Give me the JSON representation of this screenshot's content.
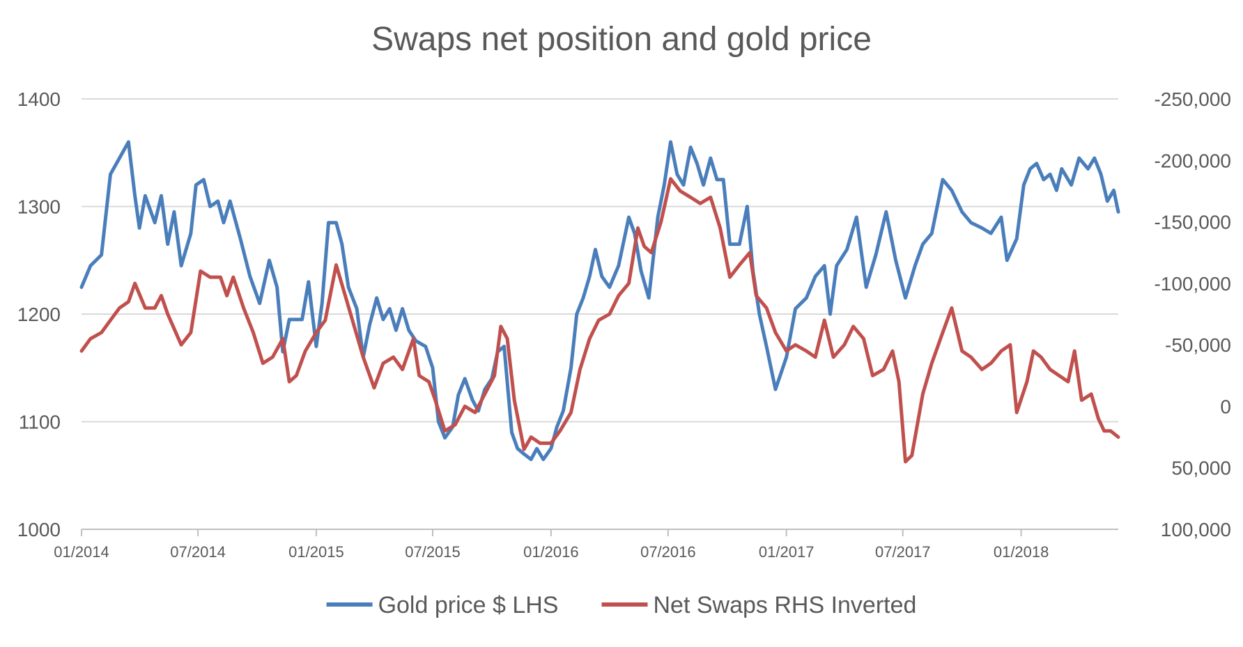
{
  "chart_data": {
    "type": "line",
    "title": "Swaps net position and gold price",
    "x_start": "01/2014",
    "x_end": "06/2018",
    "x_ticks": [
      "01/2014",
      "07/2014",
      "01/2015",
      "07/2015",
      "01/2016",
      "07/2016",
      "01/2017",
      "07/2017",
      "01/2018"
    ],
    "y_left": {
      "min": 1000,
      "max": 1400,
      "ticks": [
        1000,
        1100,
        1200,
        1300,
        1400
      ],
      "tick_labels": [
        "1000",
        "1100",
        "1200",
        "1300",
        "1400"
      ]
    },
    "y_right": {
      "inverted": true,
      "min": -250000,
      "max": 100000,
      "ticks": [
        -250000,
        -200000,
        -150000,
        -100000,
        -50000,
        0,
        50000,
        100000
      ],
      "tick_labels": [
        "-250,000",
        "-200,000",
        "-150,000",
        "-100,000",
        "-50,000",
        "0",
        "50,000",
        "100,000"
      ]
    },
    "grid": true,
    "legend_position": "bottom",
    "series": [
      {
        "name": "Gold price $ LHS",
        "axis": "left",
        "color": "#4a7ebb",
        "points": [
          [
            "2014-01-01",
            1225
          ],
          [
            "2014-01-15",
            1245
          ],
          [
            "2014-02-01",
            1255
          ],
          [
            "2014-02-15",
            1330
          ],
          [
            "2014-03-01",
            1345
          ],
          [
            "2014-03-15",
            1360
          ],
          [
            "2014-03-25",
            1310
          ],
          [
            "2014-04-01",
            1280
          ],
          [
            "2014-04-10",
            1310
          ],
          [
            "2014-04-25",
            1285
          ],
          [
            "2014-05-05",
            1310
          ],
          [
            "2014-05-15",
            1265
          ],
          [
            "2014-05-25",
            1295
          ],
          [
            "2014-06-05",
            1245
          ],
          [
            "2014-06-20",
            1275
          ],
          [
            "2014-06-28",
            1320
          ],
          [
            "2014-07-10",
            1325
          ],
          [
            "2014-07-20",
            1300
          ],
          [
            "2014-08-01",
            1305
          ],
          [
            "2014-08-10",
            1285
          ],
          [
            "2014-08-20",
            1305
          ],
          [
            "2014-09-05",
            1270
          ],
          [
            "2014-09-20",
            1235
          ],
          [
            "2014-10-05",
            1210
          ],
          [
            "2014-10-20",
            1250
          ],
          [
            "2014-11-01",
            1225
          ],
          [
            "2014-11-10",
            1165
          ],
          [
            "2014-11-20",
            1195
          ],
          [
            "2014-12-10",
            1195
          ],
          [
            "2014-12-20",
            1230
          ],
          [
            "2015-01-01",
            1170
          ],
          [
            "2015-01-10",
            1210
          ],
          [
            "2015-01-20",
            1285
          ],
          [
            "2015-02-01",
            1285
          ],
          [
            "2015-02-10",
            1265
          ],
          [
            "2015-02-20",
            1225
          ],
          [
            "2015-03-05",
            1205
          ],
          [
            "2015-03-15",
            1160
          ],
          [
            "2015-03-25",
            1190
          ],
          [
            "2015-04-05",
            1215
          ],
          [
            "2015-04-15",
            1195
          ],
          [
            "2015-04-25",
            1205
          ],
          [
            "2015-05-05",
            1185
          ],
          [
            "2015-05-15",
            1205
          ],
          [
            "2015-05-25",
            1185
          ],
          [
            "2015-06-05",
            1175
          ],
          [
            "2015-06-20",
            1170
          ],
          [
            "2015-07-01",
            1150
          ],
          [
            "2015-07-10",
            1100
          ],
          [
            "2015-07-20",
            1085
          ],
          [
            "2015-08-01",
            1095
          ],
          [
            "2015-08-10",
            1125
          ],
          [
            "2015-08-20",
            1140
          ],
          [
            "2015-09-01",
            1120
          ],
          [
            "2015-09-10",
            1110
          ],
          [
            "2015-09-20",
            1130
          ],
          [
            "2015-10-01",
            1140
          ],
          [
            "2015-10-10",
            1165
          ],
          [
            "2015-10-20",
            1170
          ],
          [
            "2015-11-01",
            1090
          ],
          [
            "2015-11-10",
            1075
          ],
          [
            "2015-11-20",
            1070
          ],
          [
            "2015-12-01",
            1065
          ],
          [
            "2015-12-10",
            1075
          ],
          [
            "2015-12-20",
            1065
          ],
          [
            "2016-01-01",
            1075
          ],
          [
            "2016-01-10",
            1095
          ],
          [
            "2016-01-20",
            1110
          ],
          [
            "2016-02-01",
            1150
          ],
          [
            "2016-02-10",
            1200
          ],
          [
            "2016-02-20",
            1215
          ],
          [
            "2016-03-01",
            1235
          ],
          [
            "2016-03-10",
            1260
          ],
          [
            "2016-03-20",
            1235
          ],
          [
            "2016-04-01",
            1225
          ],
          [
            "2016-04-15",
            1245
          ],
          [
            "2016-05-01",
            1290
          ],
          [
            "2016-05-10",
            1275
          ],
          [
            "2016-05-20",
            1240
          ],
          [
            "2016-06-01",
            1215
          ],
          [
            "2016-06-15",
            1290
          ],
          [
            "2016-06-25",
            1320
          ],
          [
            "2016-07-05",
            1360
          ],
          [
            "2016-07-15",
            1330
          ],
          [
            "2016-07-25",
            1320
          ],
          [
            "2016-08-05",
            1355
          ],
          [
            "2016-08-15",
            1340
          ],
          [
            "2016-08-25",
            1320
          ],
          [
            "2016-09-05",
            1345
          ],
          [
            "2016-09-15",
            1325
          ],
          [
            "2016-09-25",
            1325
          ],
          [
            "2016-10-05",
            1265
          ],
          [
            "2016-10-20",
            1265
          ],
          [
            "2016-11-01",
            1300
          ],
          [
            "2016-11-10",
            1240
          ],
          [
            "2016-11-20",
            1200
          ],
          [
            "2016-12-01",
            1170
          ],
          [
            "2016-12-15",
            1130
          ],
          [
            "2017-01-01",
            1160
          ],
          [
            "2017-01-15",
            1205
          ],
          [
            "2017-02-01",
            1215
          ],
          [
            "2017-02-15",
            1235
          ],
          [
            "2017-03-01",
            1245
          ],
          [
            "2017-03-10",
            1200
          ],
          [
            "2017-03-20",
            1245
          ],
          [
            "2017-04-05",
            1260
          ],
          [
            "2017-04-20",
            1290
          ],
          [
            "2017-05-05",
            1225
          ],
          [
            "2017-05-20",
            1255
          ],
          [
            "2017-06-05",
            1295
          ],
          [
            "2017-06-20",
            1250
          ],
          [
            "2017-07-05",
            1215
          ],
          [
            "2017-07-20",
            1245
          ],
          [
            "2017-08-01",
            1265
          ],
          [
            "2017-08-15",
            1275
          ],
          [
            "2017-09-01",
            1325
          ],
          [
            "2017-09-15",
            1315
          ],
          [
            "2017-10-01",
            1295
          ],
          [
            "2017-10-15",
            1285
          ],
          [
            "2017-11-01",
            1280
          ],
          [
            "2017-11-15",
            1275
          ],
          [
            "2017-12-01",
            1290
          ],
          [
            "2017-12-10",
            1250
          ],
          [
            "2017-12-25",
            1270
          ],
          [
            "2018-01-05",
            1320
          ],
          [
            "2018-01-15",
            1335
          ],
          [
            "2018-01-25",
            1340
          ],
          [
            "2018-02-05",
            1325
          ],
          [
            "2018-02-15",
            1330
          ],
          [
            "2018-02-25",
            1315
          ],
          [
            "2018-03-05",
            1335
          ],
          [
            "2018-03-20",
            1320
          ],
          [
            "2018-04-01",
            1345
          ],
          [
            "2018-04-15",
            1335
          ],
          [
            "2018-04-25",
            1345
          ],
          [
            "2018-05-05",
            1330
          ],
          [
            "2018-05-15",
            1305
          ],
          [
            "2018-05-25",
            1315
          ],
          [
            "2018-06-01",
            1295
          ]
        ]
      },
      {
        "name": "Net Swaps RHS Inverted",
        "axis": "right",
        "color": "#c0504d",
        "points": [
          [
            "2014-01-01",
            -45000
          ],
          [
            "2014-01-15",
            -55000
          ],
          [
            "2014-02-01",
            -60000
          ],
          [
            "2014-02-15",
            -70000
          ],
          [
            "2014-03-01",
            -80000
          ],
          [
            "2014-03-15",
            -85000
          ],
          [
            "2014-03-25",
            -100000
          ],
          [
            "2014-04-10",
            -80000
          ],
          [
            "2014-04-25",
            -80000
          ],
          [
            "2014-05-05",
            -90000
          ],
          [
            "2014-05-15",
            -75000
          ],
          [
            "2014-06-05",
            -50000
          ],
          [
            "2014-06-20",
            -60000
          ],
          [
            "2014-07-05",
            -110000
          ],
          [
            "2014-07-20",
            -105000
          ],
          [
            "2014-08-05",
            -105000
          ],
          [
            "2014-08-15",
            -90000
          ],
          [
            "2014-08-25",
            -105000
          ],
          [
            "2014-09-10",
            -80000
          ],
          [
            "2014-09-25",
            -60000
          ],
          [
            "2014-10-10",
            -35000
          ],
          [
            "2014-10-25",
            -40000
          ],
          [
            "2014-11-10",
            -55000
          ],
          [
            "2014-11-20",
            -20000
          ],
          [
            "2014-12-01",
            -25000
          ],
          [
            "2014-12-15",
            -45000
          ],
          [
            "2015-01-01",
            -60000
          ],
          [
            "2015-01-15",
            -70000
          ],
          [
            "2015-02-01",
            -115000
          ],
          [
            "2015-02-15",
            -90000
          ],
          [
            "2015-03-01",
            -65000
          ],
          [
            "2015-03-15",
            -40000
          ],
          [
            "2015-04-01",
            -15000
          ],
          [
            "2015-04-15",
            -35000
          ],
          [
            "2015-05-01",
            -40000
          ],
          [
            "2015-05-15",
            -30000
          ],
          [
            "2015-06-01",
            -55000
          ],
          [
            "2015-06-10",
            -25000
          ],
          [
            "2015-06-25",
            -20000
          ],
          [
            "2015-07-05",
            -5000
          ],
          [
            "2015-07-20",
            20000
          ],
          [
            "2015-08-05",
            15000
          ],
          [
            "2015-08-20",
            0
          ],
          [
            "2015-09-05",
            5000
          ],
          [
            "2015-09-20",
            -10000
          ],
          [
            "2015-10-05",
            -25000
          ],
          [
            "2015-10-15",
            -65000
          ],
          [
            "2015-10-25",
            -55000
          ],
          [
            "2015-11-05",
            -5000
          ],
          [
            "2015-11-20",
            35000
          ],
          [
            "2015-12-01",
            25000
          ],
          [
            "2015-12-15",
            30000
          ],
          [
            "2016-01-01",
            30000
          ],
          [
            "2016-01-15",
            20000
          ],
          [
            "2016-02-01",
            5000
          ],
          [
            "2016-02-15",
            -30000
          ],
          [
            "2016-03-01",
            -55000
          ],
          [
            "2016-03-15",
            -70000
          ],
          [
            "2016-04-01",
            -75000
          ],
          [
            "2016-04-15",
            -90000
          ],
          [
            "2016-05-01",
            -100000
          ],
          [
            "2016-05-15",
            -145000
          ],
          [
            "2016-05-25",
            -130000
          ],
          [
            "2016-06-05",
            -125000
          ],
          [
            "2016-06-20",
            -150000
          ],
          [
            "2016-07-05",
            -185000
          ],
          [
            "2016-07-20",
            -175000
          ],
          [
            "2016-08-05",
            -170000
          ],
          [
            "2016-08-20",
            -165000
          ],
          [
            "2016-09-05",
            -170000
          ],
          [
            "2016-09-20",
            -145000
          ],
          [
            "2016-10-05",
            -105000
          ],
          [
            "2016-10-20",
            -115000
          ],
          [
            "2016-11-05",
            -125000
          ],
          [
            "2016-11-15",
            -90000
          ],
          [
            "2016-12-01",
            -80000
          ],
          [
            "2016-12-15",
            -60000
          ],
          [
            "2017-01-01",
            -45000
          ],
          [
            "2017-01-15",
            -50000
          ],
          [
            "2017-02-01",
            -45000
          ],
          [
            "2017-02-15",
            -40000
          ],
          [
            "2017-03-01",
            -70000
          ],
          [
            "2017-03-15",
            -40000
          ],
          [
            "2017-04-01",
            -50000
          ],
          [
            "2017-04-15",
            -65000
          ],
          [
            "2017-05-01",
            -55000
          ],
          [
            "2017-05-15",
            -25000
          ],
          [
            "2017-06-01",
            -30000
          ],
          [
            "2017-06-15",
            -45000
          ],
          [
            "2017-06-25",
            -20000
          ],
          [
            "2017-07-05",
            45000
          ],
          [
            "2017-07-15",
            40000
          ],
          [
            "2017-08-01",
            -10000
          ],
          [
            "2017-08-15",
            -35000
          ],
          [
            "2017-09-01",
            -60000
          ],
          [
            "2017-09-15",
            -80000
          ],
          [
            "2017-10-01",
            -45000
          ],
          [
            "2017-10-15",
            -40000
          ],
          [
            "2017-11-01",
            -30000
          ],
          [
            "2017-11-15",
            -35000
          ],
          [
            "2017-12-01",
            -45000
          ],
          [
            "2017-12-15",
            -50000
          ],
          [
            "2017-12-25",
            5000
          ],
          [
            "2018-01-10",
            -20000
          ],
          [
            "2018-01-20",
            -45000
          ],
          [
            "2018-02-01",
            -40000
          ],
          [
            "2018-02-15",
            -30000
          ],
          [
            "2018-03-01",
            -25000
          ],
          [
            "2018-03-15",
            -20000
          ],
          [
            "2018-03-25",
            -45000
          ],
          [
            "2018-04-05",
            -5000
          ],
          [
            "2018-04-20",
            -10000
          ],
          [
            "2018-05-01",
            10000
          ],
          [
            "2018-05-10",
            20000
          ],
          [
            "2018-05-20",
            20000
          ],
          [
            "2018-06-01",
            25000
          ]
        ]
      }
    ]
  }
}
